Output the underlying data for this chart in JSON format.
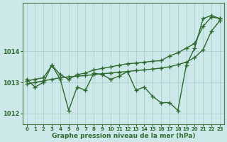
{
  "xlabel": "Graphe pression niveau de la mer (hPa)",
  "background_color": "#cde8e8",
  "grid_color": "#b0d4d4",
  "line_color": "#2d6a2d",
  "x_values": [
    0,
    1,
    2,
    3,
    4,
    5,
    6,
    7,
    8,
    9,
    10,
    11,
    12,
    13,
    14,
    15,
    16,
    17,
    18,
    19,
    20,
    21,
    22,
    23
  ],
  "main_y": [
    1013.1,
    1012.85,
    1013.0,
    1013.55,
    1013.1,
    1012.1,
    1012.85,
    1012.75,
    1013.3,
    1013.25,
    1013.1,
    1013.2,
    1013.35,
    1012.75,
    1012.85,
    1012.55,
    1012.35,
    1012.35,
    1012.1,
    1013.55,
    1014.1,
    1015.05,
    1015.15,
    1015.05
  ],
  "upper_y": [
    1013.05,
    1013.1,
    1013.15,
    1013.55,
    1013.25,
    1013.1,
    1013.25,
    1013.3,
    1013.4,
    1013.45,
    1013.5,
    1013.55,
    1013.6,
    1013.62,
    1013.65,
    1013.68,
    1013.7,
    1013.85,
    1013.95,
    1014.1,
    1014.25,
    1014.8,
    1015.1,
    1015.05
  ],
  "lower_y": [
    1012.95,
    1013.0,
    1013.05,
    1013.1,
    1013.15,
    1013.18,
    1013.2,
    1013.22,
    1013.25,
    1013.28,
    1013.3,
    1013.33,
    1013.35,
    1013.38,
    1013.4,
    1013.43,
    1013.46,
    1013.5,
    1013.57,
    1013.65,
    1013.8,
    1014.05,
    1014.65,
    1014.98
  ],
  "ylim": [
    1011.65,
    1015.55
  ],
  "yticks": [
    1012,
    1013,
    1014
  ],
  "xticks": [
    0,
    1,
    2,
    3,
    4,
    5,
    6,
    7,
    8,
    9,
    10,
    11,
    12,
    13,
    14,
    15,
    16,
    17,
    18,
    19,
    20,
    21,
    22,
    23
  ],
  "marker": "+",
  "markersize": 4,
  "linewidth": 1.0
}
